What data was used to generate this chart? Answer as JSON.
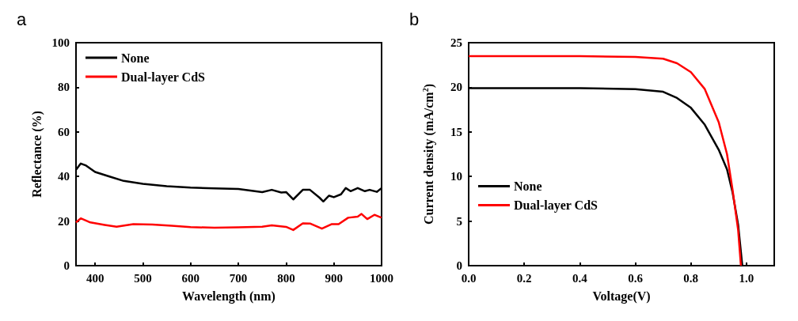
{
  "chart_data": [
    {
      "type": "line",
      "title": "a",
      "xlabel": "Wavelength (nm)",
      "ylabel": "Reflectance (%)",
      "xlim": [
        360,
        1000
      ],
      "ylim": [
        0,
        100
      ],
      "xticks": [
        400,
        500,
        600,
        700,
        800,
        900,
        1000
      ],
      "yticks": [
        0,
        20,
        40,
        60,
        80,
        100
      ],
      "legend": "top left",
      "series": [
        {
          "name": "None",
          "color": "#000000",
          "x": [
            360,
            370,
            380,
            400,
            430,
            460,
            500,
            550,
            600,
            650,
            700,
            750,
            770,
            790,
            800,
            815,
            835,
            850,
            870,
            878,
            890,
            900,
            915,
            925,
            935,
            950,
            965,
            975,
            990,
            1000
          ],
          "values": [
            43,
            45.8,
            45,
            42,
            40,
            38,
            36.7,
            35.6,
            35,
            34.7,
            34.4,
            33,
            34,
            32.8,
            33,
            29.7,
            34,
            34,
            30.5,
            28.8,
            31.4,
            30.7,
            32,
            34.8,
            33.4,
            34.8,
            33.4,
            34,
            33.1,
            34.8
          ]
        },
        {
          "name": "Dual-layer CdS",
          "color": "#ff0000",
          "x": [
            360,
            370,
            390,
            420,
            445,
            480,
            520,
            560,
            600,
            650,
            700,
            750,
            770,
            800,
            815,
            835,
            850,
            875,
            895,
            910,
            930,
            950,
            958,
            970,
            985,
            1000
          ],
          "values": [
            19.4,
            21.2,
            19.4,
            18.3,
            17.5,
            18.6,
            18.4,
            17.9,
            17.3,
            17,
            17.2,
            17.5,
            18.1,
            17.4,
            16,
            19,
            18.9,
            16.6,
            18.6,
            18.6,
            21.5,
            22,
            23.2,
            20.9,
            22.8,
            21.5
          ]
        }
      ]
    },
    {
      "type": "line",
      "title": "b",
      "xlabel": "Voltage(V)",
      "ylabel": "Current density (mA/cm$^{2}$)",
      "xlim": [
        0,
        1.1
      ],
      "ylim": [
        0,
        25
      ],
      "xticks": [
        {
          "value": 0,
          "label": "0.0"
        },
        {
          "value": 0.2,
          "label": "0.2"
        },
        {
          "value": 0.4,
          "label": "0.4"
        },
        {
          "value": 0.6,
          "label": "0.6"
        },
        {
          "value": 0.8,
          "label": "0.8"
        },
        {
          "value": 1,
          "label": "1.0"
        }
      ],
      "yticks": [
        0,
        5,
        10,
        15,
        20,
        25
      ],
      "legend": "left",
      "series": [
        {
          "name": "None",
          "color": "#000000",
          "x": [
            0,
            0.2,
            0.4,
            0.6,
            0.7,
            0.75,
            0.8,
            0.85,
            0.9,
            0.93,
            0.95,
            0.97,
            0.985
          ],
          "values": [
            19.9,
            19.9,
            19.9,
            19.8,
            19.5,
            18.8,
            17.7,
            15.8,
            13,
            10.8,
            8.2,
            4.6,
            0
          ]
        },
        {
          "name": "Dual-layer CdS",
          "color": "#ff0000",
          "x": [
            0,
            0.2,
            0.4,
            0.6,
            0.7,
            0.75,
            0.8,
            0.85,
            0.9,
            0.93,
            0.95,
            0.97,
            0.98
          ],
          "values": [
            23.5,
            23.5,
            23.5,
            23.4,
            23.2,
            22.7,
            21.7,
            19.8,
            16.1,
            12.5,
            8.5,
            4,
            0
          ]
        }
      ]
    }
  ]
}
